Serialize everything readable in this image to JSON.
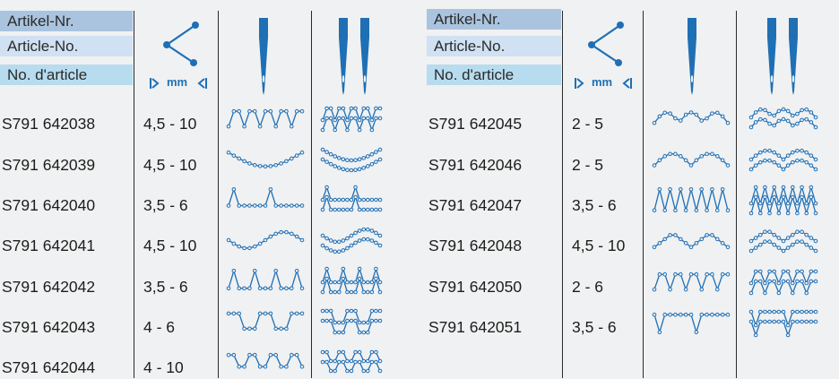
{
  "headers": {
    "left": [
      "Artikel-Nr.",
      "Article-No.",
      "No. d'article"
    ],
    "right": [
      "Artikel-Nr.",
      "Article-No.",
      "No. d'article"
    ],
    "mm_label": "mm"
  },
  "icons": {
    "width_icon": "stitch-width-icon",
    "single_needle": "single-needle-icon",
    "twin_needle": "twin-needle-icon",
    "accent_color": "#1f6fb5"
  },
  "left_rows": [
    {
      "article": "S791 642038",
      "width": "4,5 - 10",
      "pattern": "zigzag-multistep"
    },
    {
      "article": "S791 642039",
      "width": "4,5 - 10",
      "pattern": "arc-dots"
    },
    {
      "article": "S791 642040",
      "width": "3,5 - 6",
      "pattern": "spike-dots"
    },
    {
      "article": "S791 642041",
      "width": "4,5 - 10",
      "pattern": "wave-dots"
    },
    {
      "article": "S791 642042",
      "width": "3,5 - 6",
      "pattern": "triangles"
    },
    {
      "article": "S791 642043",
      "width": "4 - 6",
      "pattern": "squares"
    },
    {
      "article": "S791 642044",
      "width": "4 - 10",
      "pattern": "small-zigzag"
    }
  ],
  "right_rows": [
    {
      "article": "S791 642045",
      "width": "2 - 5",
      "pattern": "scallop"
    },
    {
      "article": "S791 642046",
      "width": "2 - 5",
      "pattern": "satin-scallop"
    },
    {
      "article": "S791 642047",
      "width": "3,5 - 6",
      "pattern": "zigzag-tall"
    },
    {
      "article": "S791 642048",
      "width": "4,5 - 10",
      "pattern": "chevron"
    },
    {
      "article": "S791 642050",
      "width": "2 - 6",
      "pattern": "zigzag-dots"
    },
    {
      "article": "S791 642051",
      "width": "3,5 - 6",
      "pattern": "t-shape"
    }
  ]
}
